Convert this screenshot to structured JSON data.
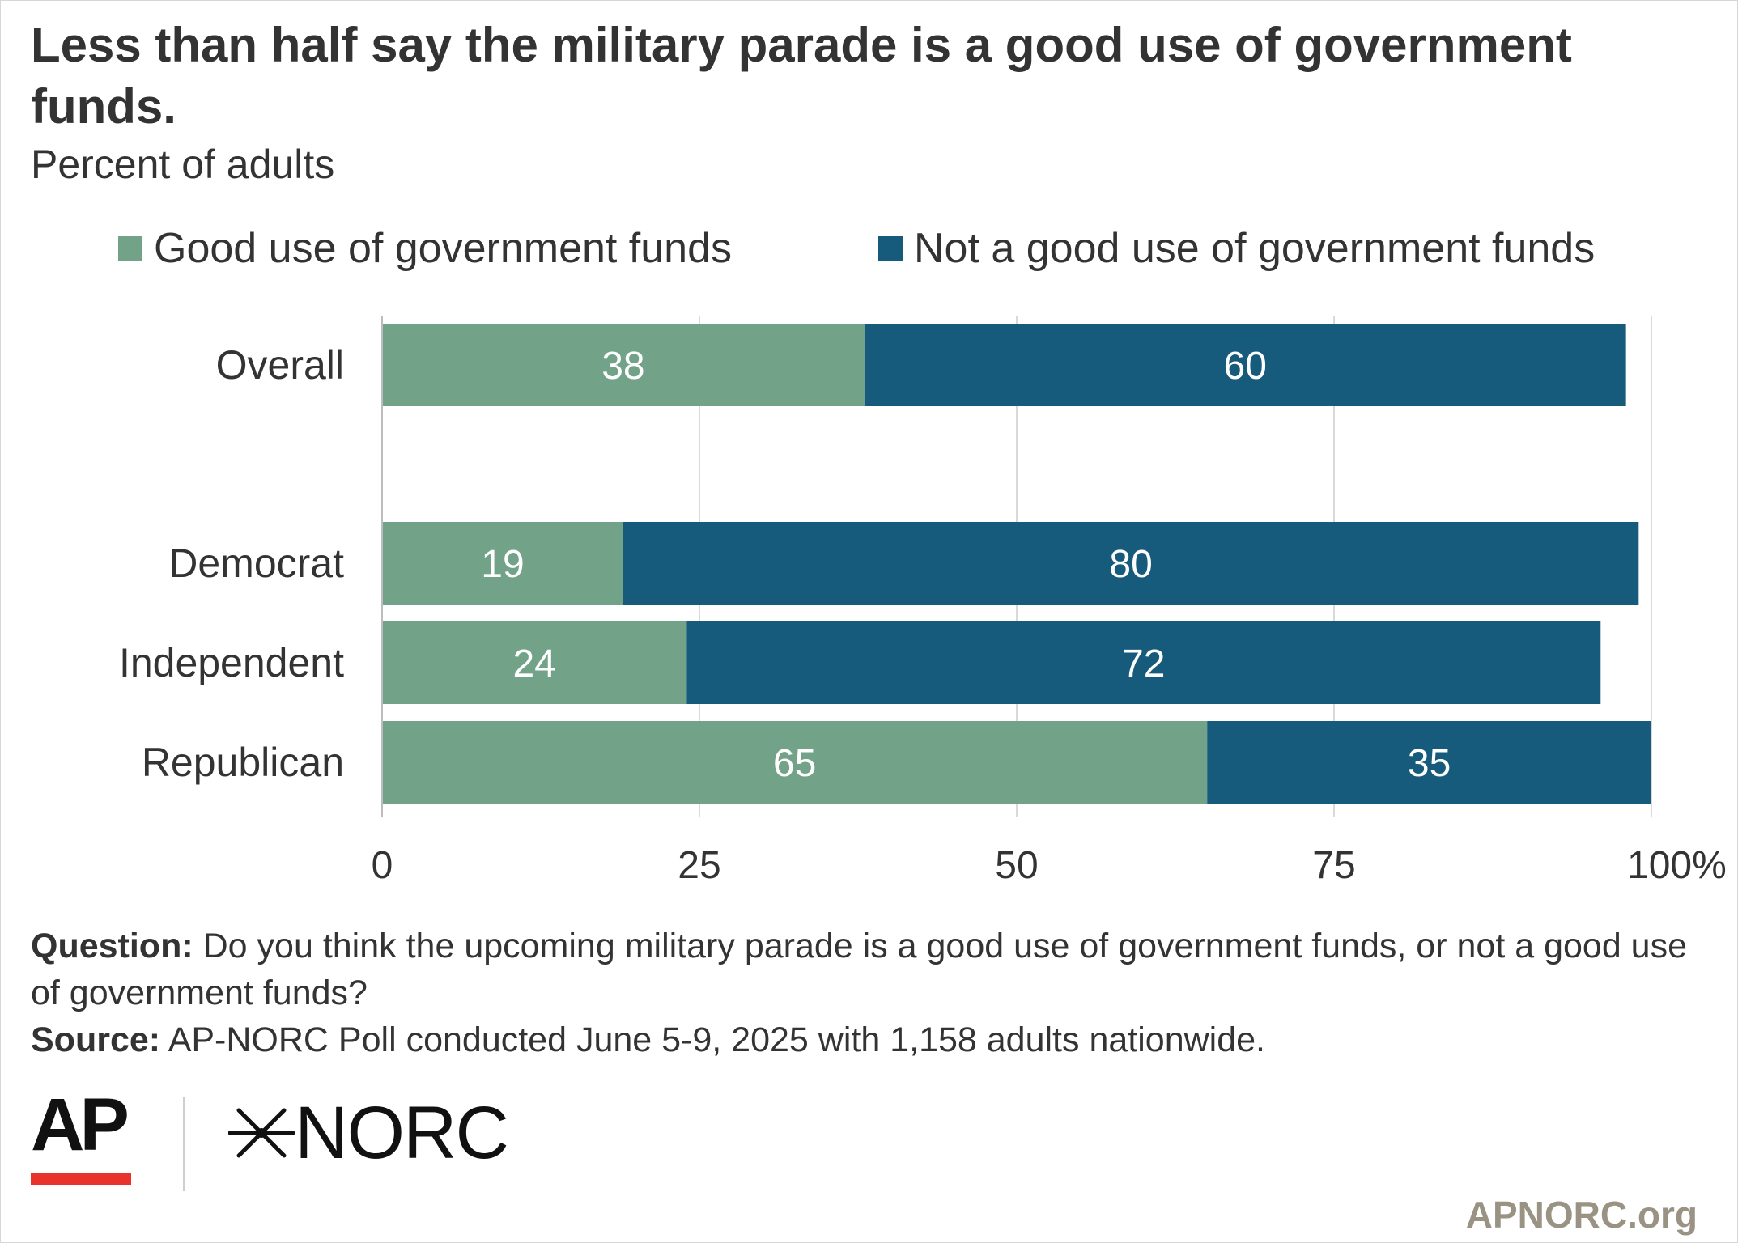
{
  "header": {
    "title": "Less than half say the military parade is a good use of government funds.",
    "subtitle": "Percent of adults"
  },
  "colors": {
    "good": "#72a389",
    "not_good": "#175b7c",
    "grid": "#d9d9d9",
    "text": "#333333"
  },
  "chart_data": {
    "type": "bar",
    "orientation": "horizontal",
    "stacked": true,
    "categories": [
      "Overall",
      "Democrat",
      "Independent",
      "Republican"
    ],
    "series": [
      {
        "name": "Good use of government funds",
        "values": [
          38,
          19,
          24,
          65
        ]
      },
      {
        "name": "Not a good use of government funds",
        "values": [
          60,
          80,
          72,
          35
        ]
      }
    ],
    "xlim": [
      0,
      100
    ],
    "xticks": [
      "0",
      "25",
      "50",
      "75",
      "100%"
    ],
    "grid": true,
    "legend": "top"
  },
  "notes": {
    "question_label": "Question:",
    "question_text": "Do you think the upcoming military parade is a good use of government funds, or not a good use of government funds?",
    "source_label": "Source:",
    "source_text": "AP-NORC Poll conducted June 5-9, 2025 with 1,158 adults nationwide."
  },
  "logos": {
    "ap": "AP",
    "norc": "NORC"
  },
  "website": "APNORC.org"
}
